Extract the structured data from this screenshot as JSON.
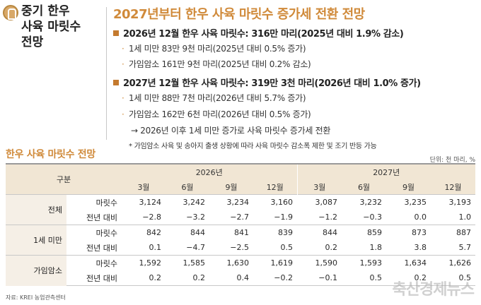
{
  "side_title": [
    "중기 한우",
    "사육 마릿수",
    "전망"
  ],
  "main_title": "2027년부터 한우 사육 마릿수 증가세 전환 전망",
  "bullets": [
    {
      "text": "2026년 12월 한우 사육 마릿수: 316만 마리(2025년 대비 1.9% 감소)",
      "subs": [
        "1세 미만 83만 9천 마리(2025년 대비 0.5% 증가)",
        "가임암소 161만 9천 마리(2025년 대비 0.2% 감소)"
      ]
    },
    {
      "text": "2027년 12월 한우 사육 마릿수: 319만 3천 마리(2026년 대비 1.0% 증가)",
      "subs": [
        "1세 미만 88만 7천 마리(2026년 대비 5.7% 증가)",
        "가임암소 162만 6천 마리(2026년 대비 0.5% 증가)"
      ]
    }
  ],
  "arrow_text": "2026년 이후 1세 미만 증가로 사육 마릿수 증가세 전환",
  "arrow_symbol": "→",
  "note": "* 가임암소 사육 및 송아지 출생 상황에 따라 사육 마릿수 감소폭 제한 및 조기 반등 가능",
  "table_title": "한우 사육 마릿수 전망",
  "unit": "단위: 천 마리, %",
  "table": {
    "header_group": "구분",
    "years": [
      "2026년",
      "2027년"
    ],
    "months": [
      "3월",
      "6월",
      "9월",
      "12월",
      "3월",
      "6월",
      "9월",
      "12월"
    ],
    "groups": [
      {
        "name": "전체",
        "rows": [
          {
            "label": "마릿수",
            "values": [
              "3,124",
              "3,242",
              "3,234",
              "3,160",
              "3,087",
              "3,232",
              "3,235",
              "3,193"
            ]
          },
          {
            "label": "전년 대비",
            "values": [
              "−2.8",
              "−3.2",
              "−2.7",
              "−1.9",
              "−1.2",
              "−0.3",
              "0.0",
              "1.0"
            ]
          }
        ]
      },
      {
        "name": "1세 미만",
        "rows": [
          {
            "label": "마릿수",
            "values": [
              "842",
              "844",
              "841",
              "839",
              "844",
              "859",
              "873",
              "887"
            ]
          },
          {
            "label": "전년 대비",
            "values": [
              "0.1",
              "−4.7",
              "−2.5",
              "0.5",
              "0.2",
              "1.8",
              "3.8",
              "5.7"
            ]
          }
        ]
      },
      {
        "name": "가임암소",
        "rows": [
          {
            "label": "마릿수",
            "values": [
              "1,592",
              "1,585",
              "1,630",
              "1,619",
              "1,590",
              "1,593",
              "1,634",
              "1,626"
            ]
          },
          {
            "label": "전년 대비",
            "values": [
              "0.2",
              "0.2",
              "0.4",
              "−0.2",
              "−0.1",
              "0.5",
              "0.2",
              "0.5"
            ]
          }
        ]
      }
    ]
  },
  "source": "자료: KREI 농업관측센터",
  "watermark": "축산경제뉴스",
  "colors": {
    "accent": "#d08a3a",
    "bullet": "#c47a2e",
    "header_bg": "#f1e6d4"
  }
}
